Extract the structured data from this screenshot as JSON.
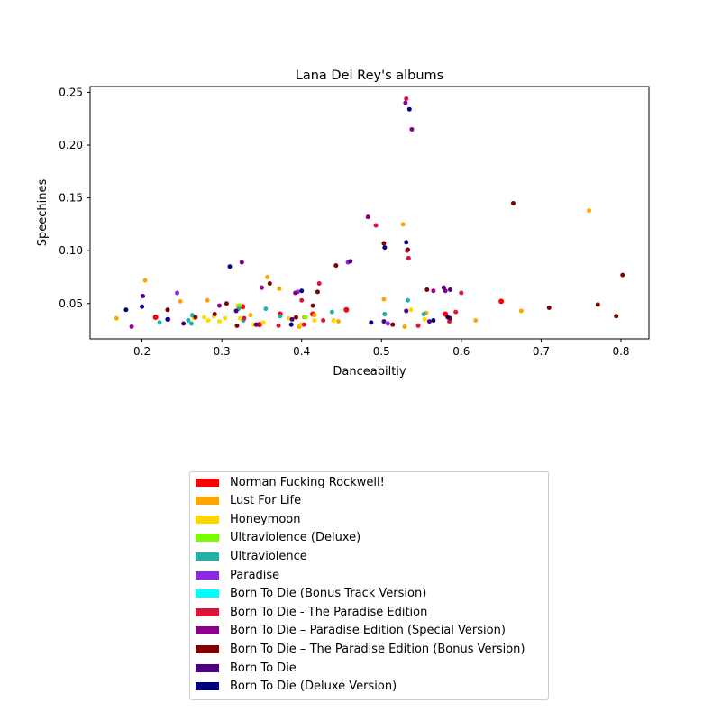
{
  "chart_data": {
    "type": "scatter",
    "title": "Lana Del Rey's albums",
    "xlabel": "Danceabiltiy",
    "ylabel": "Speechines",
    "xlim": [
      0.135,
      0.835
    ],
    "ylim": [
      0.0165,
      0.2555
    ],
    "xticks": [
      "0.2",
      "0.3",
      "0.4",
      "0.5",
      "0.6",
      "0.7",
      "0.8"
    ],
    "xtick_values": [
      0.2,
      0.3,
      0.4,
      0.5,
      0.6,
      0.7,
      0.8
    ],
    "yticks": [
      "0.05",
      "0.10",
      "0.15",
      "0.20",
      "0.25"
    ],
    "ytick_values": [
      0.05,
      0.1,
      0.15,
      0.2,
      0.25
    ],
    "grid": false,
    "legend_position": "below",
    "series": [
      {
        "name": "Norman Fucking Rockwell!",
        "color": "#ff0000",
        "marker_size": 6,
        "points": [
          [
            0.217,
            0.037
          ],
          [
            0.326,
            0.047
          ],
          [
            0.373,
            0.04
          ],
          [
            0.414,
            0.04
          ],
          [
            0.456,
            0.044
          ],
          [
            0.58,
            0.04
          ],
          [
            0.65,
            0.052
          ],
          [
            0.347,
            0.03
          ]
        ]
      },
      {
        "name": "Lust For Life",
        "color": "#ffa500",
        "marker_size": 5,
        "points": [
          [
            0.168,
            0.036
          ],
          [
            0.204,
            0.072
          ],
          [
            0.248,
            0.052
          ],
          [
            0.282,
            0.053
          ],
          [
            0.336,
            0.039
          ],
          [
            0.357,
            0.075
          ],
          [
            0.372,
            0.064
          ],
          [
            0.403,
            0.037
          ],
          [
            0.416,
            0.039
          ],
          [
            0.446,
            0.033
          ],
          [
            0.503,
            0.054
          ],
          [
            0.527,
            0.125
          ],
          [
            0.529,
            0.028
          ],
          [
            0.556,
            0.041
          ],
          [
            0.618,
            0.034
          ],
          [
            0.675,
            0.043
          ],
          [
            0.76,
            0.138
          ],
          [
            0.397,
            0.028
          ]
        ]
      },
      {
        "name": "Honeymoon",
        "color": "#ffd700",
        "marker_size": 5,
        "points": [
          [
            0.265,
            0.036
          ],
          [
            0.278,
            0.037
          ],
          [
            0.29,
            0.038
          ],
          [
            0.297,
            0.033
          ],
          [
            0.304,
            0.036
          ],
          [
            0.323,
            0.036
          ],
          [
            0.34,
            0.03
          ],
          [
            0.352,
            0.032
          ],
          [
            0.384,
            0.036
          ],
          [
            0.4,
            0.03
          ],
          [
            0.416,
            0.034
          ],
          [
            0.44,
            0.034
          ],
          [
            0.537,
            0.044
          ],
          [
            0.554,
            0.035
          ],
          [
            0.283,
            0.034
          ],
          [
            0.32,
            0.048
          ]
        ]
      },
      {
        "name": "Ultraviolence (Deluxe)",
        "color": "#7cfc00",
        "marker_size": 5,
        "points": [
          [
            0.322,
            0.048
          ],
          [
            0.405,
            0.037
          ]
        ]
      },
      {
        "name": "Ultraviolence",
        "color": "#20b2aa",
        "marker_size": 5,
        "points": [
          [
            0.222,
            0.032
          ],
          [
            0.258,
            0.034
          ],
          [
            0.263,
            0.039
          ],
          [
            0.321,
            0.045
          ],
          [
            0.327,
            0.034
          ],
          [
            0.355,
            0.045
          ],
          [
            0.373,
            0.038
          ],
          [
            0.438,
            0.042
          ],
          [
            0.504,
            0.04
          ],
          [
            0.533,
            0.053
          ],
          [
            0.553,
            0.04
          ],
          [
            0.262,
            0.031
          ]
        ]
      },
      {
        "name": "Paradise",
        "color": "#8a2be2",
        "marker_size": 5,
        "points": [
          [
            0.244,
            0.06
          ],
          [
            0.395,
            0.061
          ],
          [
            0.458,
            0.089
          ],
          [
            0.508,
            0.031
          ]
        ]
      },
      {
        "name": "Born To Die (Bonus Track Version)",
        "color": "#00ffff",
        "marker_size": 5,
        "points": []
      },
      {
        "name": "Born To Die - The Paradise Edition",
        "color": "#dc143c",
        "marker_size": 5,
        "points": [
          [
            0.233,
            0.035
          ],
          [
            0.328,
            0.036
          ],
          [
            0.371,
            0.029
          ],
          [
            0.4,
            0.053
          ],
          [
            0.427,
            0.034
          ],
          [
            0.422,
            0.069
          ],
          [
            0.531,
            0.244
          ],
          [
            0.534,
            0.093
          ],
          [
            0.546,
            0.029
          ],
          [
            0.585,
            0.033
          ],
          [
            0.593,
            0.042
          ],
          [
            0.6,
            0.06
          ],
          [
            0.493,
            0.124
          ],
          [
            0.532,
            0.1
          ],
          [
            0.403,
            0.03
          ]
        ]
      },
      {
        "name": "Born To Die – Paradise Edition (Special Version)",
        "color": "#8b008b",
        "marker_size": 5,
        "points": [
          [
            0.187,
            0.028
          ],
          [
            0.297,
            0.048
          ],
          [
            0.325,
            0.089
          ],
          [
            0.35,
            0.065
          ],
          [
            0.392,
            0.06
          ],
          [
            0.483,
            0.132
          ],
          [
            0.538,
            0.215
          ],
          [
            0.565,
            0.062
          ],
          [
            0.58,
            0.062
          ],
          [
            0.53,
            0.24
          ]
        ]
      },
      {
        "name": "Born To Die – The Paradise Edition (Bonus Version)",
        "color": "#800000",
        "marker_size": 5,
        "points": [
          [
            0.232,
            0.044
          ],
          [
            0.267,
            0.037
          ],
          [
            0.291,
            0.04
          ],
          [
            0.319,
            0.029
          ],
          [
            0.36,
            0.069
          ],
          [
            0.393,
            0.037
          ],
          [
            0.414,
            0.048
          ],
          [
            0.443,
            0.086
          ],
          [
            0.503,
            0.107
          ],
          [
            0.514,
            0.03
          ],
          [
            0.533,
            0.101
          ],
          [
            0.557,
            0.063
          ],
          [
            0.586,
            0.036
          ],
          [
            0.665,
            0.145
          ],
          [
            0.71,
            0.046
          ],
          [
            0.771,
            0.049
          ],
          [
            0.794,
            0.038
          ],
          [
            0.802,
            0.077
          ],
          [
            0.42,
            0.061
          ],
          [
            0.306,
            0.05
          ]
        ]
      },
      {
        "name": "Born To Die",
        "color": "#4b0082",
        "marker_size": 5,
        "points": [
          [
            0.201,
            0.057
          ],
          [
            0.252,
            0.031
          ],
          [
            0.318,
            0.043
          ],
          [
            0.343,
            0.03
          ],
          [
            0.388,
            0.035
          ],
          [
            0.461,
            0.09
          ],
          [
            0.503,
            0.033
          ],
          [
            0.531,
            0.043
          ],
          [
            0.56,
            0.033
          ],
          [
            0.578,
            0.065
          ],
          [
            0.586,
            0.063
          ]
        ]
      },
      {
        "name": "Born To Die (Deluxe Version)",
        "color": "#000080",
        "marker_size": 5,
        "points": [
          [
            0.18,
            0.044
          ],
          [
            0.2,
            0.047
          ],
          [
            0.232,
            0.035
          ],
          [
            0.31,
            0.085
          ],
          [
            0.387,
            0.03
          ],
          [
            0.4,
            0.062
          ],
          [
            0.487,
            0.032
          ],
          [
            0.504,
            0.103
          ],
          [
            0.531,
            0.108
          ],
          [
            0.535,
            0.234
          ],
          [
            0.565,
            0.034
          ],
          [
            0.583,
            0.037
          ]
        ]
      }
    ]
  }
}
